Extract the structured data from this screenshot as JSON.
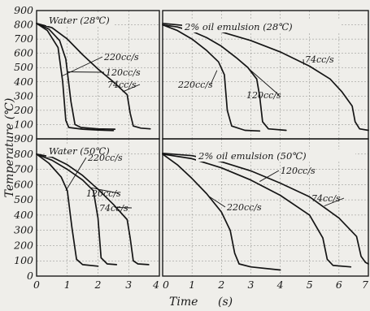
{
  "chart_data": {
    "type": "line",
    "layout": "2x2 grid of panels sharing the y axis and time axes",
    "y_axis": {
      "label": "Temperature (℃)",
      "range": [
        0,
        900
      ],
      "ticks": [
        "0",
        "100",
        "200",
        "300",
        "400",
        "500",
        "600",
        "700",
        "800",
        "900"
      ]
    },
    "x_axis": {
      "label_word": "Time",
      "label_unit": "(s)",
      "left_range": [
        0,
        4
      ],
      "left_ticks": [
        "0",
        "1",
        "2",
        "3",
        "4"
      ],
      "right_range": [
        0,
        7
      ],
      "right_ticks": [
        "0",
        "1",
        "2",
        "3",
        "4",
        "5",
        "6",
        "7"
      ]
    },
    "grid": true,
    "panels": [
      {
        "id": "top-left",
        "title": "Water (28℃)",
        "xlim": [
          0,
          4
        ],
        "ylim": [
          0,
          900
        ],
        "series": [
          {
            "name": "220cc/s",
            "points": [
              [
                0,
                810
              ],
              [
                0.35,
                760
              ],
              [
                0.7,
                640
              ],
              [
                0.85,
                400
              ],
              [
                0.95,
                130
              ],
              [
                1.05,
                80
              ],
              [
                1.5,
                68
              ],
              [
                2.0,
                62
              ],
              [
                2.5,
                58
              ]
            ]
          },
          {
            "name": "120cc/s",
            "points": [
              [
                0,
                810
              ],
              [
                0.4,
                770
              ],
              [
                0.75,
                690
              ],
              [
                0.95,
                560
              ],
              [
                1.12,
                260
              ],
              [
                1.25,
                100
              ],
              [
                1.45,
                80
              ],
              [
                2.0,
                70
              ],
              [
                2.55,
                68
              ]
            ]
          },
          {
            "name": "74cc/s",
            "points": [
              [
                0,
                810
              ],
              [
                0.5,
                780
              ],
              [
                1.0,
                700
              ],
              [
                1.5,
                590
              ],
              [
                2.0,
                490
              ],
              [
                2.5,
                400
              ],
              [
                2.95,
                310
              ],
              [
                3.05,
                180
              ],
              [
                3.15,
                90
              ],
              [
                3.4,
                75
              ],
              [
                3.7,
                70
              ]
            ]
          }
        ],
        "annotations": [
          {
            "text": "220cc/s",
            "series": "220cc/s"
          },
          {
            "text": "120cc/s",
            "series": "120cc/s"
          },
          {
            "text": "74cc/s",
            "series": "74cc/s"
          }
        ]
      },
      {
        "id": "top-right",
        "title": "2% oil emulsion (28℃)",
        "xlim": [
          0,
          7
        ],
        "ylim": [
          0,
          900
        ],
        "series": [
          {
            "name": "220cc/s",
            "points": [
              [
                0,
                800
              ],
              [
                0.5,
                760
              ],
              [
                1.0,
                700
              ],
              [
                1.5,
                620
              ],
              [
                1.9,
                540
              ],
              [
                2.1,
                450
              ],
              [
                2.2,
                200
              ],
              [
                2.35,
                90
              ],
              [
                2.8,
                60
              ],
              [
                3.3,
                55
              ]
            ]
          },
          {
            "name": "120cc/s",
            "points": [
              [
                0,
                800
              ],
              [
                0.5,
                785
              ],
              [
                1.0,
                755
              ],
              [
                1.5,
                710
              ],
              [
                2.0,
                650
              ],
              [
                2.5,
                570
              ],
              [
                2.9,
                500
              ],
              [
                3.2,
                420
              ],
              [
                3.3,
                300
              ],
              [
                3.4,
                120
              ],
              [
                3.6,
                70
              ],
              [
                4.2,
                60
              ]
            ]
          },
          {
            "name": "74cc/s",
            "points": [
              [
                0,
                810
              ],
              [
                1.0,
                790
              ],
              [
                2.0,
                750
              ],
              [
                3.0,
                690
              ],
              [
                4.0,
                610
              ],
              [
                5.0,
                510
              ],
              [
                5.7,
                420
              ],
              [
                6.1,
                330
              ],
              [
                6.45,
                230
              ],
              [
                6.55,
                120
              ],
              [
                6.7,
                70
              ],
              [
                7.0,
                60
              ]
            ]
          }
        ],
        "annotations": [
          {
            "text": "220cc/s",
            "series": "220cc/s"
          },
          {
            "text": "120cc/s",
            "series": "120cc/s"
          },
          {
            "text": "74cc/s",
            "series": "74cc/s"
          }
        ]
      },
      {
        "id": "bottom-left",
        "title": "Water (50℃)",
        "xlim": [
          0,
          4
        ],
        "ylim": [
          0,
          900
        ],
        "series": [
          {
            "name": "220cc/s",
            "points": [
              [
                0,
                800
              ],
              [
                0.4,
                740
              ],
              [
                0.8,
                650
              ],
              [
                1.0,
                560
              ],
              [
                1.15,
                320
              ],
              [
                1.3,
                110
              ],
              [
                1.5,
                75
              ],
              [
                2.0,
                65
              ]
            ]
          },
          {
            "name": "120cc/s",
            "points": [
              [
                0,
                800
              ],
              [
                0.5,
                760
              ],
              [
                1.0,
                700
              ],
              [
                1.5,
                630
              ],
              [
                1.85,
                560
              ],
              [
                2.0,
                380
              ],
              [
                2.1,
                120
              ],
              [
                2.3,
                80
              ],
              [
                2.6,
                75
              ]
            ]
          },
          {
            "name": "74cc/s",
            "points": [
              [
                0,
                800
              ],
              [
                0.5,
                780
              ],
              [
                1.0,
                730
              ],
              [
                1.5,
                660
              ],
              [
                2.0,
                570
              ],
              [
                2.5,
                470
              ],
              [
                2.95,
                370
              ],
              [
                3.05,
                250
              ],
              [
                3.15,
                100
              ],
              [
                3.3,
                80
              ],
              [
                3.65,
                75
              ]
            ]
          }
        ],
        "annotations": [
          {
            "text": "220cc/s",
            "series": "220cc/s"
          },
          {
            "text": "120cc/s",
            "series": "120cc/s"
          },
          {
            "text": "74cc/s",
            "series": "74cc/s"
          }
        ]
      },
      {
        "id": "bottom-right",
        "title": "2% oil emulsion (50℃)",
        "xlim": [
          0,
          7
        ],
        "ylim": [
          0,
          900
        ],
        "series": [
          {
            "name": "220cc/s",
            "points": [
              [
                0,
                800
              ],
              [
                0.5,
                730
              ],
              [
                1.0,
                640
              ],
              [
                1.5,
                540
              ],
              [
                2.0,
                420
              ],
              [
                2.3,
                300
              ],
              [
                2.45,
                150
              ],
              [
                2.6,
                80
              ],
              [
                3.0,
                60
              ],
              [
                4.0,
                40
              ]
            ]
          },
          {
            "name": "120cc/s",
            "points": [
              [
                0,
                800
              ],
              [
                1.0,
                770
              ],
              [
                2.0,
                710
              ],
              [
                3.0,
                630
              ],
              [
                4.0,
                530
              ],
              [
                5.0,
                400
              ],
              [
                5.45,
                250
              ],
              [
                5.6,
                110
              ],
              [
                5.8,
                70
              ],
              [
                6.4,
                60
              ]
            ]
          },
          {
            "name": "74cc/s",
            "points": [
              [
                0,
                805
              ],
              [
                1.0,
                790
              ],
              [
                2.0,
                750
              ],
              [
                3.0,
                690
              ],
              [
                4.0,
                610
              ],
              [
                5.0,
                520
              ],
              [
                6.0,
                380
              ],
              [
                6.6,
                260
              ],
              [
                6.75,
                130
              ],
              [
                6.9,
                90
              ],
              [
                7.0,
                80
              ]
            ]
          }
        ],
        "annotations": [
          {
            "text": "220cc/s",
            "series": "220cc/s"
          },
          {
            "text": "120cc/s",
            "series": "120cc/s"
          },
          {
            "text": "74cc/s",
            "series": "74cc/s"
          }
        ]
      }
    ]
  }
}
